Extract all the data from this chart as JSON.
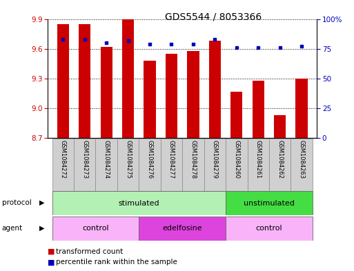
{
  "title": "GDS5544 / 8053366",
  "samples": [
    "GSM1084272",
    "GSM1084273",
    "GSM1084274",
    "GSM1084275",
    "GSM1084276",
    "GSM1084277",
    "GSM1084278",
    "GSM1084279",
    "GSM1084260",
    "GSM1084261",
    "GSM1084262",
    "GSM1084263"
  ],
  "transformed_count": [
    9.85,
    9.85,
    9.62,
    9.9,
    9.48,
    9.55,
    9.58,
    9.68,
    9.17,
    9.28,
    8.93,
    9.3
  ],
  "percentile_rank": [
    83,
    83,
    80,
    82,
    79,
    79,
    79,
    83,
    76,
    76,
    76,
    77
  ],
  "y_min": 8.7,
  "y_max": 9.9,
  "y_ticks": [
    8.7,
    9.0,
    9.3,
    9.6,
    9.9
  ],
  "y2_ticks": [
    0,
    25,
    50,
    75,
    100
  ],
  "protocol_groups": [
    {
      "label": "stimulated",
      "start": 0,
      "end": 8,
      "color": "#b3f0b3"
    },
    {
      "label": "unstimulated",
      "start": 8,
      "end": 12,
      "color": "#44dd44"
    }
  ],
  "agent_groups": [
    {
      "label": "control",
      "start": 0,
      "end": 4,
      "color": "#f9b3f9"
    },
    {
      "label": "edelfosine",
      "start": 4,
      "end": 8,
      "color": "#dd44dd"
    },
    {
      "label": "control",
      "start": 8,
      "end": 12,
      "color": "#f9b3f9"
    }
  ],
  "bar_color": "#cc0000",
  "dot_color": "#0000bb",
  "bar_width": 0.55,
  "title_fontsize": 10,
  "axis_label_color_left": "#cc0000",
  "axis_label_color_right": "#0000bb",
  "sample_label_bg": "#d0d0d0"
}
